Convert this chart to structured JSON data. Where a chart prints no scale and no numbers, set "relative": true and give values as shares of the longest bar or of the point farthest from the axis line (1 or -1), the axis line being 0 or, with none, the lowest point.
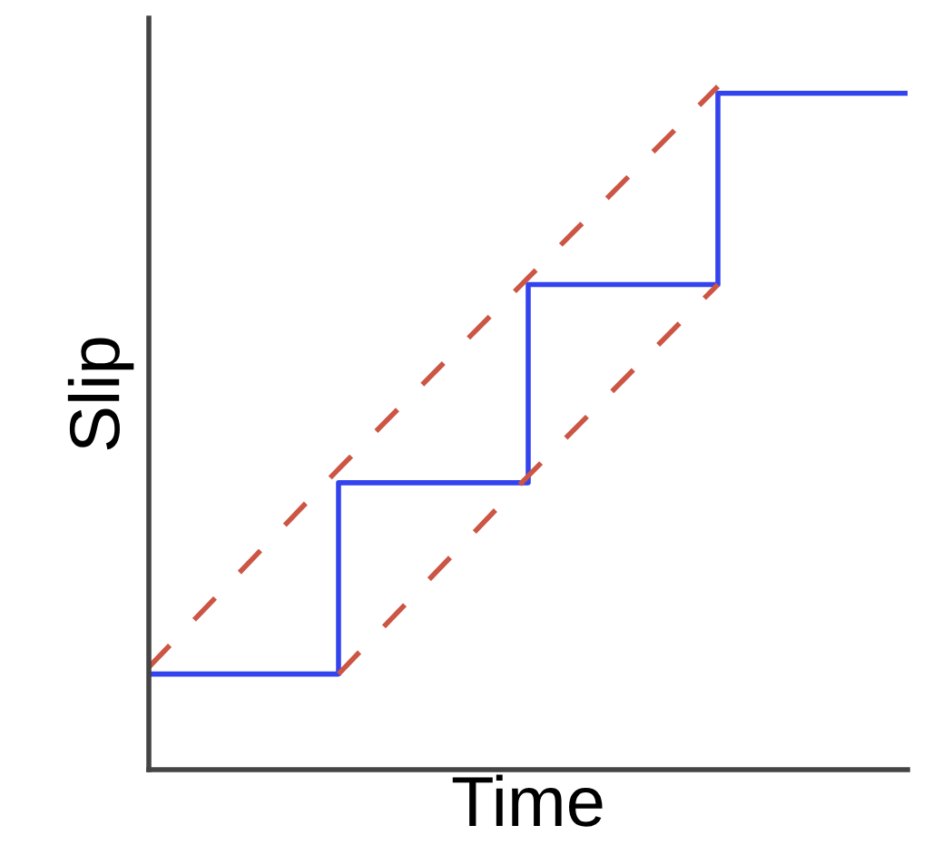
{
  "chart_data": {
    "type": "line",
    "relative": true,
    "xlabel": "Time",
    "ylabel": "Slip",
    "tick_labels": false,
    "grid": false,
    "legend": false,
    "categories": [
      null,
      null,
      null,
      null,
      null
    ],
    "series": [
      {
        "type": "step",
        "color": "#3344ee",
        "line_style": "solid",
        "values": [
          0.14,
          0.42,
          0.71,
          0.99,
          0.99
        ]
      },
      {
        "color": "#cc5544",
        "line_style": "dashed",
        "values": [
          0.15,
          0.44,
          0.72,
          1.0,
          null
        ]
      },
      {
        "color": "#cc5544",
        "line_style": "dashed",
        "values": [
          null,
          0.14,
          0.43,
          0.71,
          null
        ]
      }
    ]
  }
}
